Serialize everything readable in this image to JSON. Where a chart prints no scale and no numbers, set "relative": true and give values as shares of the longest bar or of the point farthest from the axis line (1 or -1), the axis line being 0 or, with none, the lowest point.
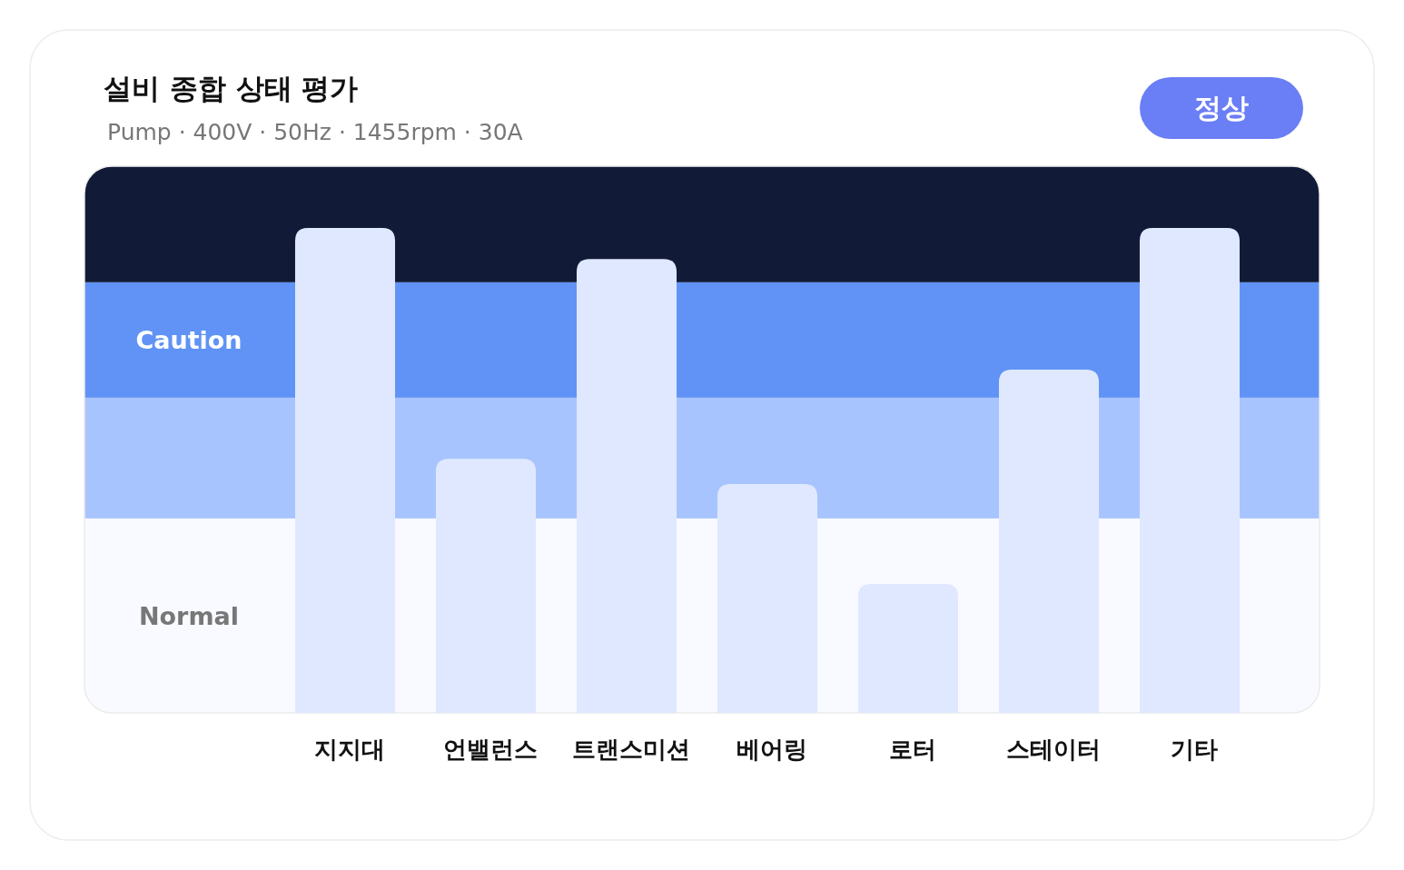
{
  "chart_data": {
    "type": "bar",
    "title": "설비 종합 상태 평가",
    "subtitle": "Pump · 400V · 50Hz · 1455rpm · 30A",
    "annotations": [
      "정상"
    ],
    "categories": [
      "지지대",
      "언밸런스",
      "트랜스미션",
      "베어링",
      "로터",
      "스테이터",
      "기타"
    ],
    "values": [
      1,
      0.524,
      0.936,
      0.472,
      0.266,
      0.708,
      1
    ],
    "color": "#dfe8fe",
    "relative": true,
    "bands": [
      {
        "axis": "y",
        "from": 0,
        "to": 0.401,
        "label": "Normal",
        "color": "#f8faff"
      },
      {
        "axis": "y",
        "from": 0.401,
        "to": 0.65,
        "color": "#a8c4fe"
      },
      {
        "axis": "y",
        "from": 0.65,
        "to": 0.888,
        "label": "Caution",
        "color": "#6093f5"
      },
      {
        "axis": "y",
        "from": 0.888,
        "to": 1.127,
        "color": "#111b37"
      }
    ]
  }
}
